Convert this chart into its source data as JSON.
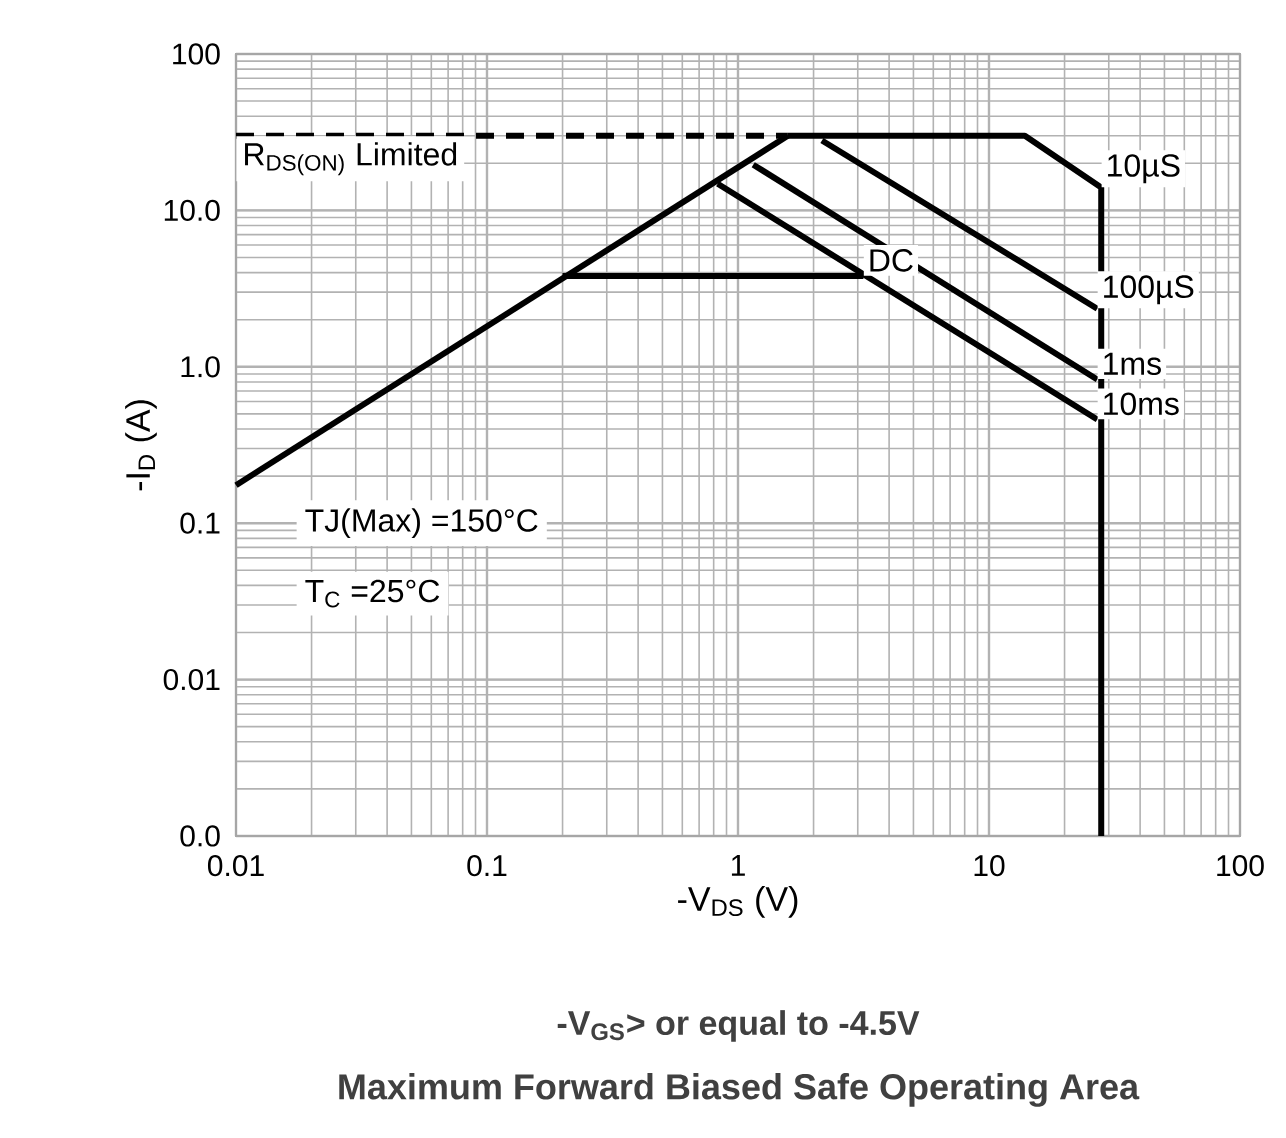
{
  "chart_data": {
    "type": "line",
    "title": "Maximum Forward Biased Safe Operating Area",
    "subtitle": "-V$_{GS}$> or equal to -4.5V",
    "xlabel": "-V$_{DS}$ (V)",
    "ylabel": "-I$_{D}$ (A)",
    "log": "xy",
    "grid": true,
    "marker": "none",
    "line_style": "solid",
    "xlim": [
      0.01,
      100
    ],
    "xticks": [
      0.01,
      0.1,
      1,
      10,
      100
    ],
    "ylim": [
      0.001,
      100
    ],
    "yticks": [
      {
        "value": 0.001,
        "label": "0.0"
      },
      0.01,
      0.1,
      {
        "value": 1,
        "label": "1.0"
      },
      {
        "value": 10,
        "label": "10.0"
      },
      100
    ],
    "annotations": [
      "TJ(Max) =150°C",
      "T$_{C}$ =25°C"
    ],
    "series": [
      {
        "name": "R$_{DS(ON)}$ Limited",
        "color": "#000000",
        "line_style": "dashed",
        "x": [
          0.01,
          1.58
        ],
        "values": [
          30,
          30
        ]
      },
      {
        "color": "#000000",
        "x": [
          0.01,
          1.58
        ],
        "values": [
          0.175,
          30
        ]
      },
      {
        "name": "10µS",
        "color": "#000000",
        "x": [
          1.58,
          13.9,
          28,
          28
        ],
        "values": [
          30,
          30,
          14,
          0.001
        ]
      },
      {
        "name": "100µS",
        "color": "#000000",
        "x": [
          2.16,
          27
        ],
        "values": [
          28,
          2.35
        ]
      },
      {
        "name": "1ms",
        "color": "#000000",
        "x": [
          1.15,
          27
        ],
        "values": [
          19.6,
          0.83
        ]
      },
      {
        "name": "10ms",
        "color": "#000000",
        "x": [
          0.83,
          27
        ],
        "values": [
          14.8,
          0.46
        ]
      },
      {
        "name": "DC",
        "color": "#000000",
        "x": [
          0.2,
          3.16
        ],
        "values": [
          3.8,
          3.8
        ]
      }
    ]
  }
}
